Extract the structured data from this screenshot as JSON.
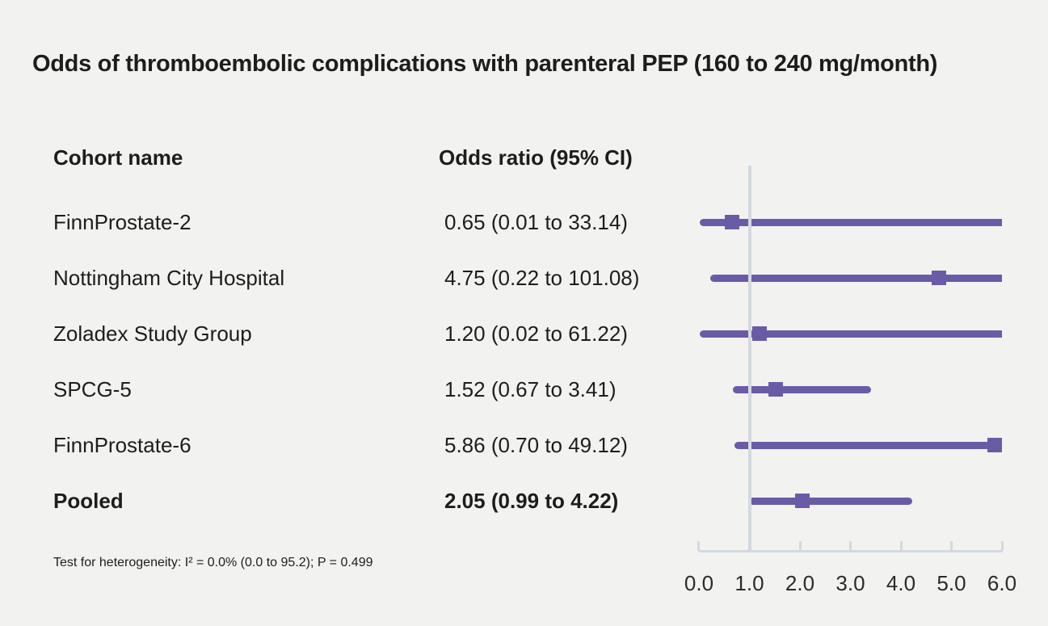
{
  "chart_data": {
    "type": "forest",
    "title": "Odds of thromboembolic complications with parenteral PEP (160 to 240 mg/month)",
    "columns": {
      "cohort": "Cohort name",
      "odds_ratio": "Odds ratio (95% CI)"
    },
    "rows": [
      {
        "label": "FinnProstate-2",
        "or_text": "0.65 (0.01 to 33.14)",
        "or": 0.65,
        "ci_low": 0.01,
        "ci_high": 33.14,
        "pooled": false
      },
      {
        "label": "Nottingham City Hospital",
        "or_text": "4.75 (0.22 to 101.08)",
        "or": 4.75,
        "ci_low": 0.22,
        "ci_high": 101.08,
        "pooled": false
      },
      {
        "label": "Zoladex Study Group",
        "or_text": "1.20 (0.02 to 61.22)",
        "or": 1.2,
        "ci_low": 0.02,
        "ci_high": 61.22,
        "pooled": false
      },
      {
        "label": "SPCG-5",
        "or_text": "1.52 (0.67 to 3.41)",
        "or": 1.52,
        "ci_low": 0.67,
        "ci_high": 3.41,
        "pooled": false
      },
      {
        "label": "FinnProstate-6",
        "or_text": "5.86 (0.70 to 49.12)",
        "or": 5.86,
        "ci_low": 0.7,
        "ci_high": 49.12,
        "pooled": false
      },
      {
        "label": "Pooled",
        "or_text": "2.05 (0.99 to 4.22)",
        "or": 2.05,
        "ci_low": 0.99,
        "ci_high": 4.22,
        "pooled": true
      }
    ],
    "x_axis": {
      "min": 0,
      "max": 6,
      "ticks": [
        "0.0",
        "1.0",
        "2.0",
        "3.0",
        "4.0",
        "5.0",
        "6.0"
      ],
      "reference_line": 1.0,
      "grid": false
    },
    "footnote": "Test for heterogeneity: I² = 0.0% (0.0 to 95.2); P = 0.499",
    "colors": {
      "marker": "#6a5ba6",
      "line": "#6a5ba6",
      "axis": "#d4d9e0",
      "background": "#f2f2f1",
      "text": "#1d1d1d"
    }
  }
}
